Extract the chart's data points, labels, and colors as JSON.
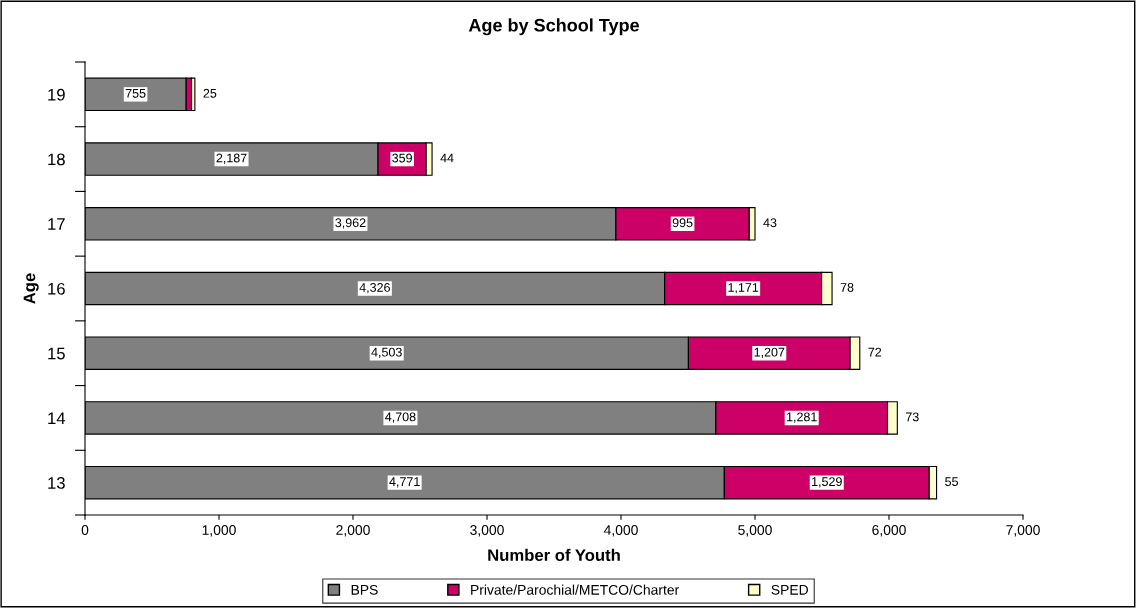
{
  "chart_data": {
    "type": "bar",
    "orientation": "horizontal",
    "stacked": true,
    "title": "Age by School Type",
    "xlabel": "Number of Youth",
    "ylabel": "Age",
    "categories": [
      "19",
      "18",
      "17",
      "16",
      "15",
      "14",
      "13"
    ],
    "series": [
      {
        "name": "BPS",
        "color": "#808080",
        "values": [
          755,
          2187,
          3962,
          4326,
          4503,
          4708,
          4771
        ],
        "value_labels": [
          "755",
          "2,187",
          "3,962",
          "4,326",
          "4,503",
          "4,708",
          "4,771"
        ]
      },
      {
        "name": "Private/Parochial/METCO/Charter",
        "color": "#cc0066",
        "values": [
          40,
          359,
          995,
          1171,
          1207,
          1281,
          1529
        ],
        "value_labels": [
          null,
          "359",
          "995",
          "1,171",
          "1,207",
          "1,281",
          "1,529"
        ]
      },
      {
        "name": "SPED",
        "color": "#ffffcc",
        "values": [
          25,
          44,
          43,
          78,
          72,
          73,
          55
        ],
        "value_labels": [
          "25",
          "44",
          "43",
          "78",
          "72",
          "73",
          "55"
        ]
      }
    ],
    "xlim": [
      0,
      7000
    ],
    "xticks": [
      {
        "value": 0,
        "label": "0"
      },
      {
        "value": 1000,
        "label": "1,000"
      },
      {
        "value": 2000,
        "label": "2,000"
      },
      {
        "value": 3000,
        "label": "3,000"
      },
      {
        "value": 4000,
        "label": "4,000"
      },
      {
        "value": 5000,
        "label": "5,000"
      },
      {
        "value": 6000,
        "label": "6,000"
      },
      {
        "value": 7000,
        "label": "7,000"
      }
    ],
    "grid": false,
    "legend": "bottom"
  }
}
